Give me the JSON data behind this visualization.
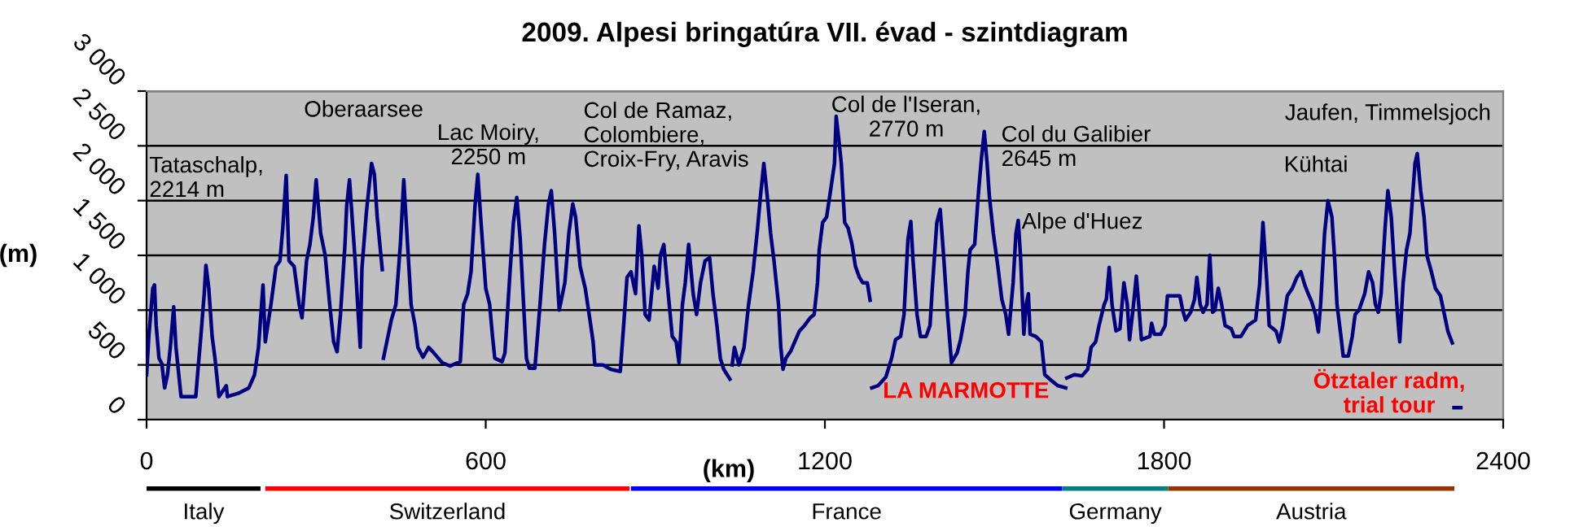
{
  "chart_data": {
    "type": "line",
    "title": "2009. Alpesi bringatúra VII. évad - szintdiagram",
    "xlabel": "(km)",
    "ylabel": "(m)",
    "xlim": [
      0,
      2400
    ],
    "xticks": [
      0,
      600,
      1200,
      1800,
      2400
    ],
    "ylim": [
      0,
      3000
    ],
    "yticks": [
      0,
      500,
      {
        "value": 1000,
        "label": "1 000"
      },
      {
        "value": 1500,
        "label": "1 500"
      },
      {
        "value": 2000,
        "label": "2 000"
      },
      {
        "value": 2500,
        "label": "2 500"
      },
      {
        "value": 3000,
        "label": "3 000"
      }
    ],
    "grid": "y",
    "marker": "none",
    "line_style": "solid",
    "series": [
      {
        "color": "#000080",
        "x": [
          0,
          4,
          11,
          14,
          17,
          22,
          27,
          32,
          37,
          42,
          48,
          52,
          56,
          61,
          70,
          87,
          91,
          96,
          102,
          105,
          110,
          116,
          121,
          128,
          141,
          143,
          162,
          181,
          191,
          198,
          206,
          210,
          220,
          229,
          236,
          241,
          247,
          252,
          261,
          270,
          275,
          283,
          289,
          295,
          300,
          308,
          316,
          324,
          331,
          337,
          343,
          351,
          354,
          359,
          364,
          369,
          374,
          378,
          381,
          389,
          398,
          403,
          408,
          417,
          418,
          419,
          427,
          433,
          441,
          449,
          455,
          460,
          468,
          475,
          480,
          489,
          499,
          508,
          523,
          537,
          555,
          561,
          568,
          574,
          581,
          586,
          591,
          600,
          607,
          612,
          616,
          629,
          634,
          643,
          649,
          655,
          661,
          667,
          672,
          677,
          687,
          696,
          704,
          711,
          716,
          722,
          730,
          740,
          747,
          754,
          759,
          767,
          776,
          783,
          790,
          793,
          807,
          821,
          838,
          844,
          850,
          857,
          865,
          871,
          876,
          882,
          889,
          898,
          905,
          909,
          915,
          921,
          930,
          937,
          942,
          948,
          953,
          959,
          967,
          973,
          980,
          988,
          996,
          1002,
          1009,
          1015,
          1021,
          1032,
          1034,
          1036,
          1040,
          1048,
          1057,
          1065,
          1073,
          1081,
          1086,
          1092,
          1098,
          1104,
          1110,
          1118,
          1122,
          1126,
          1131,
          1140,
          1155,
          1164,
          1174,
          1181,
          1187,
          1190,
          1196,
          1203,
          1210,
          1217,
          1220,
          1225,
          1229,
          1235,
          1241,
          1248,
          1254,
          1261,
          1267,
          1275,
          1280,
          1282,
          1283,
          1294,
          1308,
          1318,
          1325,
          1334,
          1340,
          1347,
          1352,
          1356,
          1363,
          1369,
          1379,
          1386,
          1390,
          1398,
          1404,
          1410,
          1417,
          1424,
          1434,
          1440,
          1448,
          1453,
          1457,
          1465,
          1472,
          1477,
          1482,
          1487,
          1491,
          1498,
          1506,
          1513,
          1520,
          1525,
          1533,
          1538,
          1542,
          1546,
          1552,
          1556,
          1560,
          1563,
          1573,
          1583,
          1589,
          1600,
          1612,
          1626,
          1627,
          1628,
          1641,
          1655,
          1665,
          1671,
          1679,
          1685,
          1694,
          1698,
          1703,
          1708,
          1715,
          1722,
          1729,
          1735,
          1739,
          1746,
          1751,
          1756,
          1760,
          1775,
          1778,
          1783,
          1794,
          1802,
          1806,
          1813,
          1828,
          1833,
          1838,
          1847,
          1854,
          1858,
          1864,
          1869,
          1876,
          1881,
          1886,
          1890,
          1896,
          1902,
          1908,
          1919,
          1924,
          1936,
          1948,
          1962,
          1969,
          1975,
          1982,
          1986,
          1998,
          2004,
          2010,
          2018,
          2027,
          2035,
          2042,
          2049,
          2055,
          2061,
          2068,
          2073,
          2077,
          2084,
          2090,
          2097,
          2102,
          2106,
          2113,
          2117,
          2126,
          2133,
          2138,
          2145,
          2155,
          2162,
          2169,
          2174,
          2179,
          2184,
          2191,
          2196,
          2202,
          2208,
          2213,
          2217,
          2223,
          2229,
          2235,
          2239,
          2244,
          2248,
          2254,
          2260,
          2265,
          2273,
          2280,
          2289,
          2296,
          2302,
          2310,
          2312,
          2313,
          2325
        ],
        "values": [
          410,
          760,
          1200,
          1230,
          860,
          560,
          510,
          290,
          410,
          660,
          1030,
          660,
          460,
          210,
          210,
          210,
          460,
          760,
          1150,
          1410,
          1200,
          760,
          560,
          210,
          310,
          210,
          240,
          290,
          410,
          660,
          1230,
          710,
          1050,
          1400,
          1450,
          1750,
          2230,
          1450,
          1400,
          1050,
          930,
          1450,
          1600,
          1850,
          2190,
          1700,
          1500,
          1050,
          710,
          620,
          960,
          1600,
          1950,
          2190,
          1820,
          1450,
          1000,
          660,
          1380,
          1900,
          2340,
          2240,
          1850,
          1370,
          null,
          560,
          760,
          910,
          1050,
          1600,
          2190,
          1750,
          1050,
          860,
          660,
          570,
          660,
          610,
          520,
          490,
          530,
          1050,
          1150,
          1350,
          1950,
          2240,
          1850,
          1200,
          1050,
          760,
          560,
          530,
          610,
          1350,
          1800,
          2030,
          1650,
          1050,
          560,
          470,
          470,
          1050,
          1600,
          1970,
          2090,
          1700,
          1000,
          1250,
          1700,
          1970,
          1850,
          1400,
          1200,
          960,
          710,
          500,
          500,
          460,
          440,
          860,
          1300,
          1350,
          1150,
          1770,
          1500,
          960,
          910,
          1400,
          1200,
          1500,
          1600,
          1250,
          760,
          710,
          520,
          1050,
          1250,
          1600,
          1150,
          960,
          1250,
          1450,
          1480,
          1150,
          860,
          560,
          460,
          370,
          null,
          500,
          660,
          500,
          660,
          1050,
          1350,
          1750,
          2040,
          2340,
          2040,
          1700,
          1450,
          1050,
          660,
          460,
          560,
          630,
          810,
          860,
          930,
          960,
          1250,
          1550,
          1800,
          1850,
          2090,
          2340,
          2770,
          2540,
          2340,
          1800,
          1750,
          1600,
          1400,
          1300,
          1250,
          1250,
          1090,
          null,
          290,
          310,
          390,
          560,
          730,
          760,
          960,
          1650,
          1810,
          1450,
          960,
          760,
          760,
          860,
          1200,
          1800,
          1920,
          1500,
          960,
          520,
          610,
          730,
          960,
          1350,
          1550,
          1600,
          2090,
          2390,
          2630,
          2340,
          2040,
          1700,
          1400,
          1100,
          960,
          780,
          1250,
          1700,
          1820,
          1500,
          780,
          1050,
          1150,
          780,
          760,
          710,
          410,
          360,
          310,
          290,
          null,
          380,
          410,
          400,
          460,
          660,
          710,
          860,
          1050,
          1100,
          1390,
          1050,
          810,
          830,
          1250,
          1050,
          730,
          1050,
          1310,
          1000,
          730,
          760,
          880,
          780,
          780,
          860,
          1130,
          1130,
          1130,
          1000,
          910,
          980,
          1100,
          1300,
          1050,
          980,
          1050,
          1500,
          980,
          1000,
          1200,
          1050,
          860,
          830,
          760,
          760,
          860,
          910,
          1230,
          1800,
          1250,
          860,
          810,
          710,
          860,
          1130,
          1200,
          1300,
          1350,
          1230,
          1150,
          1080,
          960,
          800,
          1050,
          1700,
          2000,
          1850,
          1450,
          1050,
          760,
          580,
          580,
          760,
          960,
          1000,
          1150,
          1350,
          1250,
          1050,
          980,
          1150,
          1750,
          2090,
          1850,
          1350,
          960,
          710,
          1250,
          1550,
          1700,
          1990,
          2340,
          2430,
          2090,
          1850,
          1500,
          1350,
          1200,
          1130,
          960,
          810,
          700,
          null,
          110,
          110
        ]
      }
    ],
    "annotations": [
      "Tataschalp,\n2214 m",
      "Oberaarsee",
      "Lac Moiry,\n2250 m",
      "Col de Ramaz,\nColombiere,\nCroix-Fry, Aravis",
      "Col de l'Iseran,\n2770 m",
      "Col du Galibier\n2645 m",
      "Alpe d'Huez",
      "LA MARMOTTE",
      "Jaufen, Timmelsjoch",
      "Kühtai",
      "Ötztaler radm,\ntrial tour",
      "Italy",
      "Switzerland",
      "France",
      "Germany",
      "Austria"
    ]
  }
}
